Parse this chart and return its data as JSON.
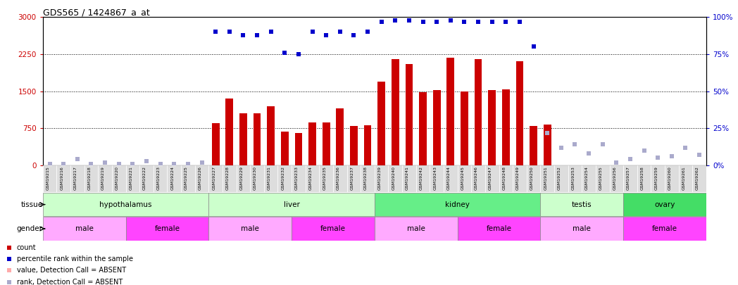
{
  "title": "GDS565 / 1424867_a_at",
  "samples": [
    "GSM19215",
    "GSM19216",
    "GSM19217",
    "GSM19218",
    "GSM19219",
    "GSM19220",
    "GSM19221",
    "GSM19222",
    "GSM19223",
    "GSM19224",
    "GSM19225",
    "GSM19226",
    "GSM19227",
    "GSM19228",
    "GSM19229",
    "GSM19230",
    "GSM19231",
    "GSM19232",
    "GSM19233",
    "GSM19234",
    "GSM19235",
    "GSM19236",
    "GSM19237",
    "GSM19238",
    "GSM19239",
    "GSM19240",
    "GSM19241",
    "GSM19242",
    "GSM19243",
    "GSM19244",
    "GSM19245",
    "GSM19246",
    "GSM19247",
    "GSM19248",
    "GSM19249",
    "GSM19250",
    "GSM19251",
    "GSM19252",
    "GSM19253",
    "GSM19254",
    "GSM19255",
    "GSM19256",
    "GSM19257",
    "GSM19258",
    "GSM19259",
    "GSM19260",
    "GSM19261",
    "GSM19262"
  ],
  "count_values": [
    0,
    0,
    0,
    0,
    0,
    0,
    0,
    0,
    0,
    0,
    0,
    0,
    850,
    1350,
    1050,
    1050,
    1200,
    680,
    650,
    870,
    870,
    1150,
    800,
    810,
    1700,
    2150,
    2050,
    1480,
    1520,
    2180,
    1500,
    2150,
    1520,
    1530,
    2110,
    800,
    820,
    0,
    0,
    0,
    0,
    0,
    0,
    0,
    0,
    0,
    0,
    0
  ],
  "percentile_values_pct": [
    null,
    null,
    null,
    null,
    null,
    null,
    null,
    null,
    null,
    null,
    null,
    null,
    90,
    90,
    88,
    88,
    90,
    76,
    75,
    90,
    88,
    90,
    88,
    90,
    97,
    98,
    98,
    97,
    97,
    98,
    97,
    97,
    97,
    97,
    97,
    80,
    null,
    null,
    null,
    null,
    null,
    null,
    null,
    null,
    null,
    null,
    null,
    null
  ],
  "absent_rank_pct": [
    1,
    1,
    4,
    1,
    2,
    1,
    1,
    3,
    1,
    1,
    1,
    2,
    null,
    null,
    null,
    null,
    null,
    null,
    null,
    null,
    null,
    null,
    null,
    null,
    null,
    null,
    null,
    null,
    null,
    null,
    null,
    null,
    null,
    null,
    null,
    null,
    22,
    12,
    14,
    8,
    14,
    2,
    4,
    10,
    5,
    6,
    12,
    7
  ],
  "absent_count_values": [
    null,
    null,
    null,
    null,
    null,
    null,
    null,
    null,
    null,
    null,
    null,
    null,
    null,
    null,
    null,
    null,
    null,
    null,
    null,
    null,
    null,
    null,
    null,
    null,
    null,
    null,
    null,
    null,
    null,
    null,
    null,
    null,
    null,
    null,
    null,
    null,
    null,
    null,
    null,
    null,
    null,
    null,
    null,
    null,
    null,
    null,
    null,
    null
  ],
  "ylim_left": [
    0,
    3000
  ],
  "ylim_right": [
    0,
    100
  ],
  "yticks_left": [
    0,
    750,
    1500,
    2250,
    3000
  ],
  "yticks_right": [
    0,
    25,
    50,
    75,
    100
  ],
  "bar_color": "#CC0000",
  "dot_color": "#0000CC",
  "absent_rank_color": "#AAAACC",
  "absent_count_color": "#FFAAAA",
  "bg_color": "#FFFFFF",
  "tissue_groups": [
    {
      "label": "hypothalamus",
      "start": 0,
      "end": 12,
      "color": "#CCFFCC"
    },
    {
      "label": "liver",
      "start": 12,
      "end": 24,
      "color": "#CCFFCC"
    },
    {
      "label": "kidney",
      "start": 24,
      "end": 36,
      "color": "#00CC66"
    },
    {
      "label": "testis",
      "start": 36,
      "end": 42,
      "color": "#CCFFCC"
    },
    {
      "label": "ovary",
      "start": 42,
      "end": 48,
      "color": "#00CC66"
    }
  ],
  "gender_groups": [
    {
      "label": "male",
      "start": 0,
      "end": 6,
      "color": "#FFAAFF"
    },
    {
      "label": "female",
      "start": 6,
      "end": 12,
      "color": "#FF44FF"
    },
    {
      "label": "male",
      "start": 12,
      "end": 18,
      "color": "#FFAAFF"
    },
    {
      "label": "female",
      "start": 18,
      "end": 24,
      "color": "#FF44FF"
    },
    {
      "label": "male",
      "start": 24,
      "end": 30,
      "color": "#FFAAFF"
    },
    {
      "label": "female",
      "start": 30,
      "end": 36,
      "color": "#FF44FF"
    },
    {
      "label": "male",
      "start": 36,
      "end": 42,
      "color": "#FFAAFF"
    },
    {
      "label": "female",
      "start": 42,
      "end": 48,
      "color": "#FF44FF"
    }
  ],
  "legend_items": [
    {
      "label": "count",
      "color": "#CC0000"
    },
    {
      "label": "percentile rank within the sample",
      "color": "#0000CC"
    },
    {
      "label": "value, Detection Call = ABSENT",
      "color": "#FFAAAA"
    },
    {
      "label": "rank, Detection Call = ABSENT",
      "color": "#AAAACC"
    }
  ]
}
